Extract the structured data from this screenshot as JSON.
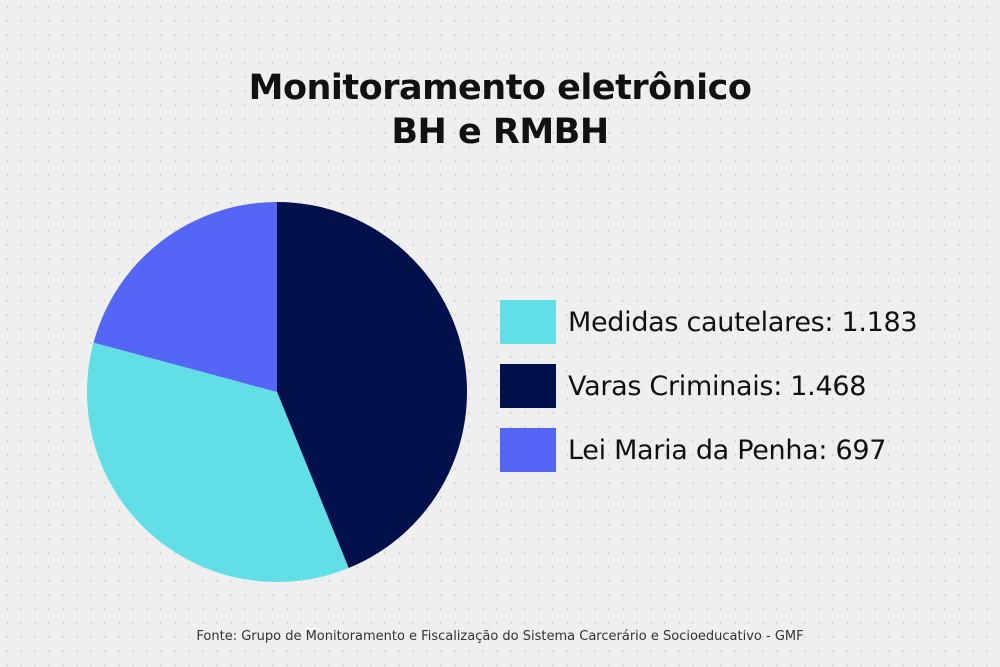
{
  "chart_data": {
    "type": "pie",
    "title": [
      "Monitoramento eletrônico",
      "BH e RMBH"
    ],
    "slices": [
      {
        "label": "Medidas cautelares: 1.183",
        "value": 1183,
        "color": "#62dfe6"
      },
      {
        "label": "Varas Criminais: 1.468",
        "value": 1468,
        "color": "#02104c"
      },
      {
        "label": "Lei Maria da Penha: 697",
        "value": 697,
        "color": "#5566f6"
      }
    ],
    "legend_position": "right"
  },
  "source": "Fonte: Grupo de Monitoramento e Fiscalização do Sistema Carcerário e Socioeducativo - GMF"
}
